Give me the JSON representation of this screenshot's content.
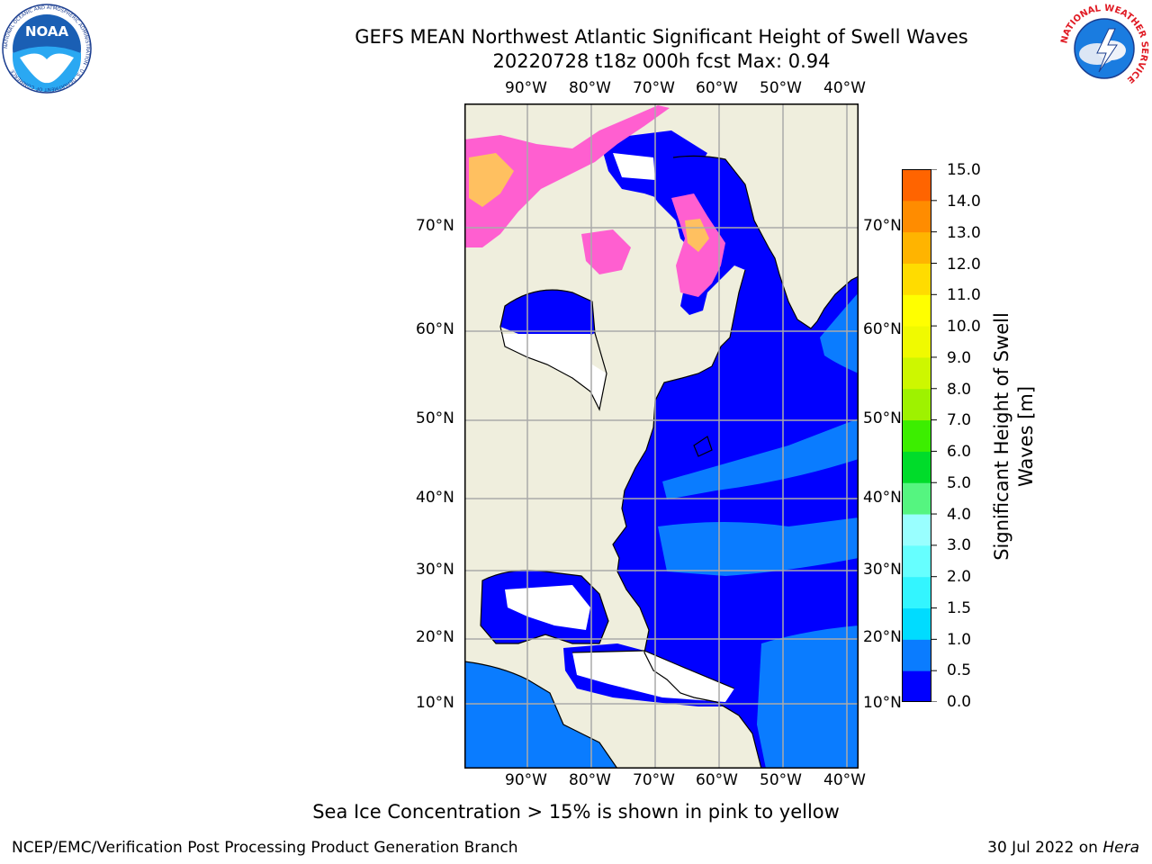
{
  "title": {
    "line1": "GEFS MEAN Northwest Atlantic Significant Height of Swell Waves",
    "line2": "20220728 t18z 000h fcst   Max: 0.94"
  },
  "map": {
    "lon_labels": [
      "90°W",
      "80°W",
      "70°W",
      "60°W",
      "50°W",
      "40°W"
    ],
    "lat_labels": [
      "70°N",
      "60°N",
      "50°N",
      "40°N",
      "30°N",
      "20°N",
      "10°N"
    ],
    "colors": {
      "land": "#efeedd",
      "swell_0": "#0000ff",
      "swell_05": "#0a7cff",
      "no_data": "#ffffff",
      "ice_pink": "#ff5fd0",
      "ice_yellow": "#ffc060",
      "grid": "#aaaaaa"
    }
  },
  "colorbar": {
    "label_line1": "Significant Height of Swell",
    "label_line2": "Waves [m]",
    "ticks": [
      "15.0",
      "14.0",
      "13.0",
      "12.0",
      "11.0",
      "10.0",
      "9.0",
      "8.0",
      "7.0",
      "6.0",
      "5.0",
      "4.0",
      "3.0",
      "2.0",
      "1.5",
      "1.0",
      "0.5",
      "0.0"
    ],
    "colors": [
      "#0000ff",
      "#0a7cff",
      "#00dcff",
      "#33f5ff",
      "#66ffff",
      "#99ffff",
      "#55f580",
      "#00dc2a",
      "#3cee00",
      "#9ef200",
      "#cdf700",
      "#f0fa00",
      "#ffff00",
      "#ffdc00",
      "#ffb400",
      "#ff8c00",
      "#ff6400",
      "#ff3c00",
      "#ff0000"
    ]
  },
  "caption": "Sea Ice Concentration > 15% is shown in pink to yellow",
  "footer": {
    "left": "NCEP/EMC/Verification Post Processing Product Generation Branch",
    "right_prefix": "30 Jul 2022 on ",
    "right_host": "Hera"
  },
  "logos": {
    "noaa_text": "NOAA",
    "noaa_ring": "NATIONAL OCEANIC AND ATMOSPHERIC ADMINISTRATION · U.S. DEPARTMENT OF COMMERCE",
    "nws_ring": "NATIONAL WEATHER SERVICE"
  }
}
